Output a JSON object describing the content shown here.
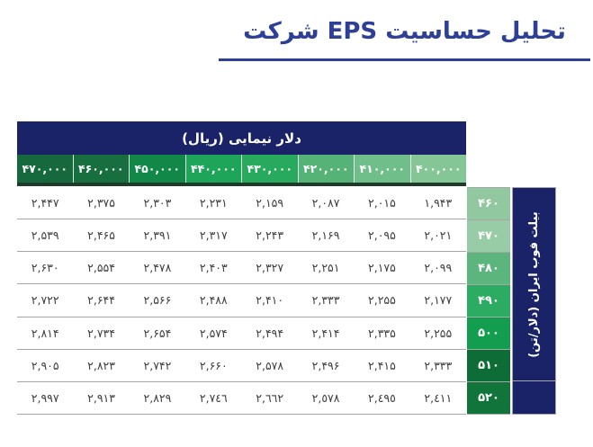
{
  "title": "تحلیل حساسیت EPS شرکت",
  "colors": {
    "title_blue": "#2D3F96",
    "navy": "#1A2368",
    "grid_line": "#A6A6A6",
    "value_text": "#3F3F3F",
    "header_shadow": "#1E3A29"
  },
  "table": {
    "top_header": "دلار نیمایی (ریال)",
    "side_header": "بیلت فوب ایران (دلار/تن)",
    "columns": {
      "labels": [
        "۴۷۰,۰۰۰",
        "۴۶۰,۰۰۰",
        "۴۵۰,۰۰۰",
        "۴۴۰,۰۰۰",
        "۴۳۰,۰۰۰",
        "۴۲۰,۰۰۰",
        "۴۱۰,۰۰۰",
        "۴۰۰,۰۰۰"
      ],
      "colors": [
        "#15693C",
        "#176E3E",
        "#118847",
        "#1FA55A",
        "#27AA5E",
        "#55B377",
        "#70BE8A",
        "#85C697"
      ]
    },
    "row_labels": {
      "labels": [
        "۴۶۰",
        "۴۷۰",
        "۴۸۰",
        "۴۹۰",
        "۵۰۰",
        "۵۱۰",
        "۵۲۰"
      ],
      "colors": [
        "#92C8A0",
        "#98CCA6",
        "#5BB57C",
        "#2BAC62",
        "#129D4F",
        "#0E6C36",
        "#10743B"
      ]
    },
    "grid": [
      [
        "۲,۴۴۷",
        "۲,۳۷۵",
        "۲,۳۰۳",
        "۲,۲۳۱",
        "۲,۱۵۹",
        "۲,۰۸۷",
        "۲,۰۱۵",
        "۱,۹۴۳"
      ],
      [
        "۲,۵۳۹",
        "۲,۴۶۵",
        "۲,۳۹۱",
        "۲,۳۱۷",
        "۲,۲۴۳",
        "۲,۱۶۹",
        "۲,۰۹۵",
        "۲,۰۲۱"
      ],
      [
        "۲,۶۳۰",
        "۲,۵۵۴",
        "۲,۴۷۸",
        "۲,۴۰۳",
        "۲,۳۲۷",
        "۲,۲۵۱",
        "۲,۱۷۵",
        "۲,۰۹۹"
      ],
      [
        "۲,۷۲۲",
        "۲,۶۴۴",
        "۲,۵۶۶",
        "۲,۴۸۸",
        "۲,۴۱۰",
        "۲,۳۳۳",
        "۲,۲۵۵",
        "۲,۱۷۷"
      ],
      [
        "۲,۸۱۴",
        "۲,۷۳۴",
        "۲,۶۵۴",
        "۲,۵۷۴",
        "۲,۴۹۴",
        "۲,۴۱۴",
        "۲,۳۳۵",
        "۲,۲۵۵"
      ],
      [
        "۲,۹۰۵",
        "۲,۸۲۳",
        "۲,۷۴۲",
        "۲,۶۶۰",
        "۲,۵۷۸",
        "۲,۴۹۶",
        "۲,۴۱۵",
        "۲,۳۳۳"
      ],
      [
        "۲,۹۹۷",
        "۲,۹۱۳",
        "۲,۸۲۹",
        "۲,۷٤٦",
        "۲,٦٦۲",
        "۲,٥۷۸",
        "۲,٤۹٥",
        "۲,٤۱۱"
      ]
    ]
  },
  "chart_data": {
    "type": "table",
    "title": "تحلیل حساسیت EPS شرکت",
    "column_axis_label": "دلار نیمایی (ریال)",
    "row_axis_label": "بیلت فوب ایران (دلار/تن)",
    "columns_rial_left_to_right": [
      470000,
      460000,
      450000,
      440000,
      430000,
      420000,
      410000,
      400000
    ],
    "rows_billet_usd_per_ton": [
      460,
      470,
      480,
      490,
      500,
      510,
      520
    ],
    "eps_values": [
      [
        2447,
        2375,
        2303,
        2231,
        2159,
        2087,
        2015,
        1943
      ],
      [
        2539,
        2465,
        2391,
        2317,
        2243,
        2169,
        2095,
        2021
      ],
      [
        2630,
        2554,
        2478,
        2403,
        2327,
        2251,
        2175,
        2099
      ],
      [
        2722,
        2644,
        2566,
        2488,
        2410,
        2333,
        2255,
        2177
      ],
      [
        2814,
        2734,
        2654,
        2574,
        2494,
        2414,
        2335,
        2255
      ],
      [
        2905,
        2823,
        2742,
        2660,
        2578,
        2496,
        2415,
        2333
      ],
      [
        2997,
        2913,
        2829,
        2746,
        2662,
        2578,
        2495,
        2411
      ]
    ]
  }
}
